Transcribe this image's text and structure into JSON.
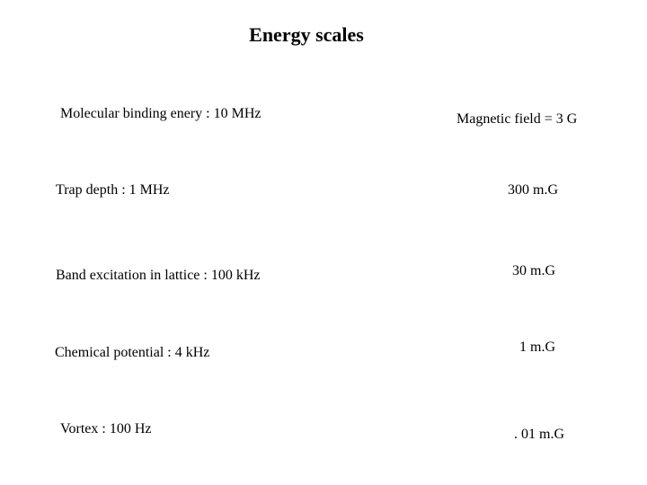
{
  "slide": {
    "title": "Energy scales",
    "energy_items": [
      "Molecular binding enery : 10 MHz",
      "Trap depth : 1 MHz",
      "Band excitation in lattice : 100 kHz",
      "Chemical potential : 4 kHz",
      "Vortex : 100 Hz"
    ],
    "field_items": [
      "Magnetic field = 3 G",
      "300 m.G",
      "30 m.G",
      "1 m.G",
      ". 01 m.G"
    ]
  }
}
